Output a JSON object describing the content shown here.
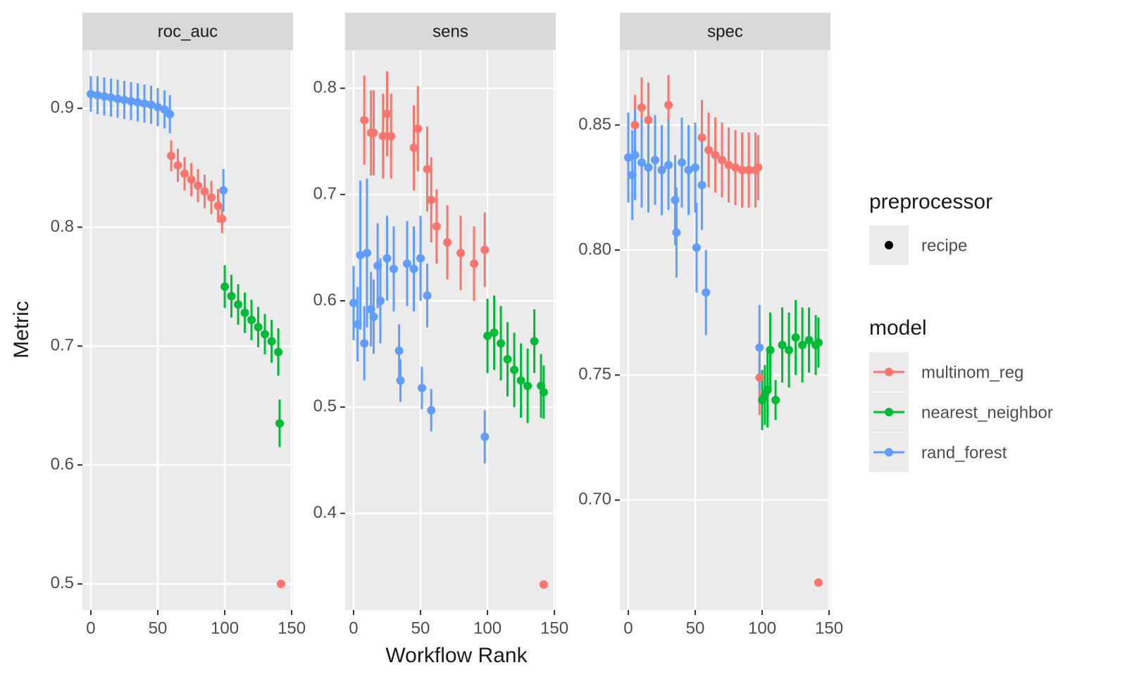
{
  "axis_labels": {
    "x": "Workflow Rank",
    "y": "Metric"
  },
  "legend": {
    "preprocessor_title": "preprocessor",
    "preprocessor_item": "recipe",
    "model_title": "model"
  },
  "chart_data": [
    {
      "type": "errorbar",
      "title": "roc_auc",
      "xlim": [
        -6.3,
        151
      ],
      "ylim": [
        0.478,
        0.949
      ],
      "xticks": [
        0,
        50,
        100,
        150
      ],
      "yticks": [
        0.5,
        0.6,
        0.7,
        0.8,
        0.9
      ],
      "grid": true,
      "series": [
        {
          "name": "multinom_reg",
          "color": "#F8766D",
          "x": [
            60,
            65,
            70,
            75,
            80,
            85,
            90,
            95,
            98,
            142
          ],
          "values": [
            0.86,
            0.852,
            0.845,
            0.84,
            0.835,
            0.83,
            0.825,
            0.818,
            0.807,
            0.5
          ],
          "errors": [
            0.013,
            0.014,
            0.014,
            0.014,
            0.014,
            0.014,
            0.014,
            0.014,
            0.012,
            0
          ]
        },
        {
          "name": "nearest_neighbor",
          "color": "#00BA38",
          "x": [
            100,
            105,
            110,
            115,
            120,
            125,
            130,
            135,
            140,
            141
          ],
          "values": [
            0.75,
            0.742,
            0.735,
            0.728,
            0.722,
            0.716,
            0.71,
            0.704,
            0.695,
            0.635
          ],
          "errors": [
            0.018,
            0.018,
            0.017,
            0.017,
            0.017,
            0.017,
            0.017,
            0.018,
            0.02,
            0.02
          ]
        },
        {
          "name": "rand_forest",
          "color": "#619CFF",
          "x": [
            0,
            5,
            10,
            15,
            20,
            25,
            30,
            35,
            40,
            45,
            50,
            55,
            59,
            99
          ],
          "values": [
            0.912,
            0.911,
            0.91,
            0.909,
            0.908,
            0.907,
            0.906,
            0.905,
            0.904,
            0.903,
            0.901,
            0.899,
            0.895,
            0.831
          ],
          "errors": [
            0.015,
            0.016,
            0.016,
            0.016,
            0.016,
            0.016,
            0.016,
            0.016,
            0.016,
            0.016,
            0.016,
            0.016,
            0.016,
            0.018
          ]
        }
      ]
    },
    {
      "type": "errorbar",
      "title": "sens",
      "xlim": [
        -6.3,
        151
      ],
      "ylim": [
        0.309,
        0.836
      ],
      "xticks": [
        0,
        50,
        100,
        150
      ],
      "yticks": [
        0.4,
        0.5,
        0.6,
        0.7,
        0.8
      ],
      "grid": true,
      "series": [
        {
          "name": "multinom_reg",
          "color": "#F8766D",
          "x": [
            8,
            13,
            15,
            22,
            25,
            28,
            45,
            48,
            55,
            58,
            62,
            70,
            80,
            90,
            98,
            142
          ],
          "values": [
            0.77,
            0.758,
            0.758,
            0.755,
            0.776,
            0.755,
            0.744,
            0.762,
            0.724,
            0.695,
            0.67,
            0.655,
            0.645,
            0.635,
            0.648,
            0.333
          ],
          "errors": [
            0.042,
            0.04,
            0.04,
            0.04,
            0.04,
            0.04,
            0.04,
            0.04,
            0.04,
            0.04,
            0.035,
            0.035,
            0.035,
            0.035,
            0.035,
            0
          ]
        },
        {
          "name": "nearest_neighbor",
          "color": "#00BA38",
          "x": [
            100,
            105,
            110,
            115,
            120,
            125,
            130,
            135,
            140,
            142
          ],
          "values": [
            0.567,
            0.57,
            0.56,
            0.545,
            0.535,
            0.525,
            0.52,
            0.562,
            0.52,
            0.514
          ],
          "errors": [
            0.035,
            0.035,
            0.035,
            0.035,
            0.035,
            0.035,
            0.035,
            0.03,
            0.03,
            0.025
          ]
        },
        {
          "name": "rand_forest",
          "color": "#619CFF",
          "x": [
            0,
            3,
            5,
            8,
            10,
            13,
            15,
            18,
            20,
            25,
            30,
            34,
            35,
            40,
            45,
            50,
            51,
            55,
            58,
            98
          ],
          "values": [
            0.598,
            0.578,
            0.643,
            0.56,
            0.645,
            0.592,
            0.585,
            0.633,
            0.6,
            0.64,
            0.63,
            0.553,
            0.525,
            0.635,
            0.63,
            0.64,
            0.518,
            0.605,
            0.497,
            0.472
          ],
          "errors": [
            0.035,
            0.035,
            0.07,
            0.035,
            0.07,
            0.035,
            0.035,
            0.04,
            0.04,
            0.04,
            0.04,
            0.025,
            0.02,
            0.04,
            0.04,
            0.04,
            0.02,
            0.03,
            0.02,
            0.025
          ]
        }
      ]
    },
    {
      "type": "errorbar",
      "title": "spec",
      "xlim": [
        -6.3,
        151
      ],
      "ylim": [
        0.656,
        0.88
      ],
      "xticks": [
        0,
        50,
        100,
        150
      ],
      "yticks": [
        {
          "value": 0.7,
          "label": "0.70"
        },
        {
          "value": 0.75,
          "label": "0.75"
        },
        {
          "value": 0.8,
          "label": "0.80"
        },
        {
          "value": 0.85,
          "label": "0.85"
        }
      ],
      "grid": true,
      "series": [
        {
          "name": "multinom_reg",
          "color": "#F8766D",
          "x": [
            5,
            10,
            15,
            30,
            55,
            60,
            65,
            70,
            75,
            80,
            85,
            90,
            95,
            97,
            98,
            142
          ],
          "values": [
            0.85,
            0.857,
            0.852,
            0.858,
            0.845,
            0.84,
            0.838,
            0.836,
            0.834,
            0.833,
            0.832,
            0.832,
            0.832,
            0.833,
            0.749,
            0.667
          ],
          "errors": [
            0.012,
            0.012,
            0.015,
            0.012,
            0.015,
            0.015,
            0.015,
            0.015,
            0.015,
            0.015,
            0.015,
            0.015,
            0.015,
            0.013,
            0.015,
            0
          ]
        },
        {
          "name": "nearest_neighbor",
          "color": "#00BA38",
          "x": [
            100,
            102,
            104,
            106,
            110,
            115,
            120,
            125,
            130,
            135,
            140,
            142
          ],
          "values": [
            0.74,
            0.742,
            0.744,
            0.76,
            0.74,
            0.762,
            0.76,
            0.765,
            0.762,
            0.764,
            0.762,
            0.763
          ],
          "errors": [
            0.012,
            0.012,
            0.015,
            0.015,
            0.008,
            0.015,
            0.015,
            0.015,
            0.015,
            0.013,
            0.012,
            0.01
          ]
        },
        {
          "name": "rand_forest",
          "color": "#619CFF",
          "x": [
            0,
            3,
            5,
            10,
            15,
            20,
            25,
            30,
            35,
            36,
            40,
            45,
            50,
            51,
            55,
            58,
            98
          ],
          "values": [
            0.837,
            0.83,
            0.838,
            0.835,
            0.833,
            0.836,
            0.832,
            0.834,
            0.82,
            0.807,
            0.835,
            0.832,
            0.833,
            0.801,
            0.826,
            0.783,
            0.761
          ],
          "errors": [
            0.018,
            0.018,
            0.018,
            0.018,
            0.018,
            0.018,
            0.018,
            0.018,
            0.018,
            0.018,
            0.018,
            0.018,
            0.018,
            0.018,
            0.018,
            0.017,
            0.017
          ]
        }
      ]
    }
  ]
}
